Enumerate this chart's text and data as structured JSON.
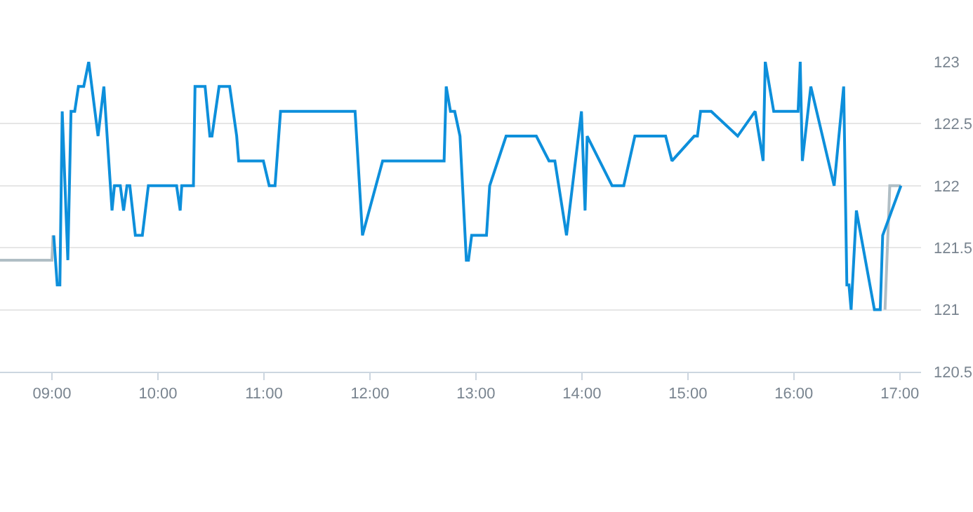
{
  "chart_data": {
    "type": "line",
    "series": [
      {
        "color": "#b0bec5",
        "x": [
          8.51,
          9.0,
          9.01,
          null,
          16.86,
          16.905,
          17.01
        ],
        "values": [
          121.4,
          121.4,
          121.6,
          null,
          121,
          122,
          122
        ]
      },
      {
        "color": "#0d8fdb",
        "x": [
          9.017,
          9.05,
          9.075,
          9.097,
          9.15,
          9.18,
          9.215,
          9.25,
          9.3,
          9.347,
          9.435,
          9.49,
          9.567,
          9.59,
          9.645,
          9.676,
          9.708,
          9.735,
          9.787,
          9.853,
          9.91,
          10.176,
          10.21,
          10.225,
          10.335,
          10.35,
          10.445,
          10.49,
          10.51,
          10.577,
          10.677,
          10.71,
          10.743,
          10.762,
          10.995,
          11.05,
          11.105,
          11.157,
          11.86,
          11.93,
          12.12,
          12.7,
          12.72,
          12.76,
          12.8,
          12.85,
          12.91,
          12.93,
          12.96,
          13.1,
          13.13,
          13.285,
          13.57,
          13.69,
          13.745,
          13.855,
          13.996,
          14.03,
          14.05,
          14.285,
          14.395,
          14.5,
          14.71,
          14.79,
          14.85,
          15.06,
          15.09,
          15.12,
          15.22,
          15.47,
          15.635,
          15.71,
          15.73,
          15.81,
          16.04,
          16.06,
          16.08,
          16.16,
          16.38,
          16.47,
          16.5,
          16.52,
          16.54,
          16.59,
          16.76,
          16.815,
          16.838,
          17.01
        ],
        "values": [
          121.6,
          121.2,
          121.2,
          122.6,
          121.4,
          122.6,
          122.6,
          122.8,
          122.8,
          123,
          122.4,
          122.8,
          121.8,
          122,
          122,
          121.8,
          122,
          122,
          121.6,
          121.6,
          122,
          122,
          121.8,
          122,
          122,
          122.8,
          122.8,
          122.4,
          122.4,
          122.8,
          122.8,
          122.6,
          122.4,
          122.2,
          122.2,
          122,
          122,
          122.6,
          122.6,
          121.6,
          122.2,
          122.2,
          122.8,
          122.6,
          122.6,
          122.4,
          121.4,
          121.4,
          121.6,
          121.6,
          122,
          122.4,
          122.4,
          122.2,
          122.2,
          121.6,
          122.6,
          121.8,
          122.4,
          122,
          122,
          122.4,
          122.4,
          122.4,
          122.2,
          122.4,
          122.4,
          122.6,
          122.6,
          122.4,
          122.6,
          122.2,
          123,
          122.6,
          122.6,
          123,
          122.2,
          122.8,
          122,
          122.8,
          121.2,
          121.2,
          121,
          121.8,
          121,
          121,
          121.6,
          122
        ]
      }
    ],
    "xlim": [
      8.51,
      17.2
    ],
    "xticks": [
      {
        "value": 9,
        "label": "09:00"
      },
      {
        "value": 10,
        "label": "10:00"
      },
      {
        "value": 11,
        "label": "11:00"
      },
      {
        "value": 12,
        "label": "12:00"
      },
      {
        "value": 13,
        "label": "13:00"
      },
      {
        "value": 14,
        "label": "14:00"
      },
      {
        "value": 15,
        "label": "15:00"
      },
      {
        "value": 16,
        "label": "16:00"
      },
      {
        "value": 17,
        "label": "17:00"
      }
    ],
    "ylim": [
      120.5,
      123
    ],
    "yticks": [
      120.5,
      121,
      121.5,
      122,
      122.5,
      123
    ],
    "grid": "y",
    "marker": "none",
    "line_style": "solid"
  }
}
